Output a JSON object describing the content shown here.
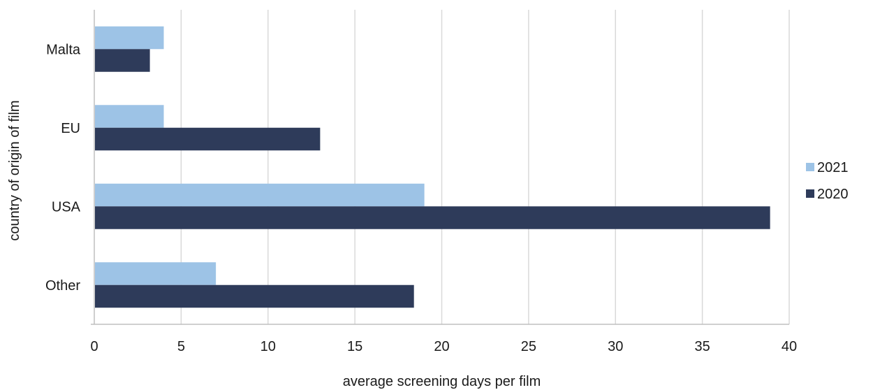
{
  "chart_data": {
    "type": "bar",
    "orientation": "horizontal",
    "categories": [
      "Malta",
      "EU",
      "USA",
      "Other"
    ],
    "series": [
      {
        "name": "2021",
        "color": "#9dc3e6",
        "values": [
          4,
          4,
          19,
          7
        ]
      },
      {
        "name": "2020",
        "color": "#2e3b5a",
        "values": [
          3.2,
          13,
          38.9,
          18.4
        ]
      }
    ],
    "xlabel": "average screening days per film",
    "ylabel": "country of origin of film",
    "xlim": [
      0,
      40
    ],
    "xticks": [
      "0",
      "5",
      "10",
      "15",
      "20",
      "25",
      "30",
      "35",
      "40"
    ],
    "grid": "vertical",
    "legend_position": "right"
  }
}
